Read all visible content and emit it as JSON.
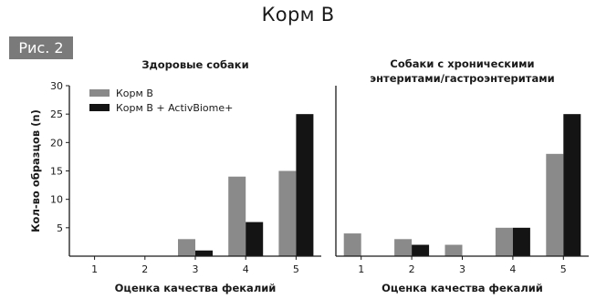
{
  "header": {
    "title": "Корм B",
    "figure_label": "Рис. 2"
  },
  "colors": {
    "food_b": "#8a8a8a",
    "food_b_activbiome": "#141414",
    "axis": "#1a1a1a"
  },
  "chart_data": [
    {
      "type": "bar",
      "title": "Здоровые собаки",
      "title_lines": [
        "Здоровые собаки"
      ],
      "xlabel": "Оценка качества фекалий",
      "ylabel": "Кол-во образцов (n)",
      "categories": [
        "1",
        "2",
        "3",
        "4",
        "5"
      ],
      "ylim": [
        0,
        30
      ],
      "yticks": [
        5,
        10,
        15,
        20,
        25,
        30
      ],
      "legend": "top-left",
      "grid": false,
      "series": [
        {
          "name": "Корм B",
          "color": "#8a8a8a",
          "values": [
            0,
            0,
            3,
            14,
            15
          ]
        },
        {
          "name": "Корм B + ActivBiome+",
          "color": "#141414",
          "values": [
            0,
            0,
            1,
            6,
            25
          ]
        }
      ]
    },
    {
      "type": "bar",
      "title": "Собаки с хроническими энтеритами/гастроэнтеритами",
      "title_lines": [
        "Собаки с хроническими",
        "энтеритами/гастроэнтеритами"
      ],
      "xlabel": "Оценка качества фекалий",
      "ylabel": "",
      "categories": [
        "1",
        "2",
        "3",
        "4",
        "5"
      ],
      "ylim": [
        0,
        30
      ],
      "yticks": [],
      "grid": false,
      "series": [
        {
          "name": "Корм B",
          "color": "#8a8a8a",
          "values": [
            4,
            3,
            2,
            5,
            18
          ]
        },
        {
          "name": "Корм B + ActivBiome+",
          "color": "#141414",
          "values": [
            0,
            2,
            0,
            5,
            25
          ]
        }
      ]
    }
  ]
}
